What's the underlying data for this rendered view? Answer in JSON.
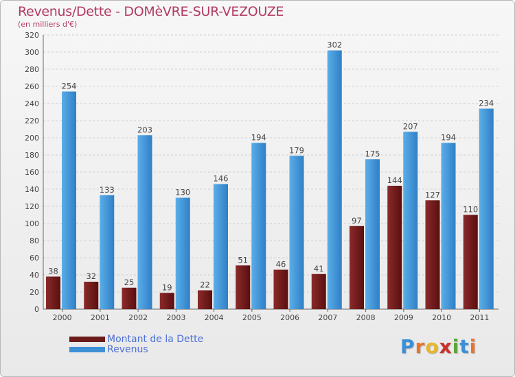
{
  "chart_data": {
    "type": "bar",
    "title": "Revenus/Dette - DOMèVRE-SUR-VEZOUZE",
    "subtitle": "(en milliers d'€)",
    "categories": [
      "2000",
      "2001",
      "2002",
      "2003",
      "2004",
      "2005",
      "2006",
      "2007",
      "2008",
      "2009",
      "2010",
      "2011"
    ],
    "series": [
      {
        "name": "Montant de la Dette",
        "color": "#6b1a1a",
        "values": [
          38,
          32,
          25,
          19,
          22,
          51,
          46,
          41,
          97,
          144,
          127,
          110
        ]
      },
      {
        "name": "Revenus",
        "color": "#3d8fd6",
        "values": [
          254,
          133,
          203,
          130,
          146,
          194,
          179,
          302,
          175,
          207,
          194,
          234
        ]
      }
    ],
    "ylim": [
      0,
      320
    ],
    "yticks": [
      "0",
      "20",
      "40",
      "60",
      "80",
      "100",
      "120",
      "140",
      "160",
      "180",
      "200",
      "220",
      "240",
      "260",
      "280",
      "300",
      "320"
    ],
    "grid": true,
    "legend_placement": "bottom-left"
  },
  "logo": {
    "text": "Proxiti",
    "letters": [
      {
        "ch": "P",
        "color": "#3a8fd8"
      },
      {
        "ch": "r",
        "color": "#e8752a"
      },
      {
        "ch": "o",
        "color": "#e8b62a"
      },
      {
        "ch": "x",
        "color": "#c9302c"
      },
      {
        "ch": "i",
        "color": "#5aa63a"
      },
      {
        "ch": "t",
        "color": "#3a8fd8"
      },
      {
        "ch": "i",
        "color": "#e8752a"
      }
    ]
  }
}
